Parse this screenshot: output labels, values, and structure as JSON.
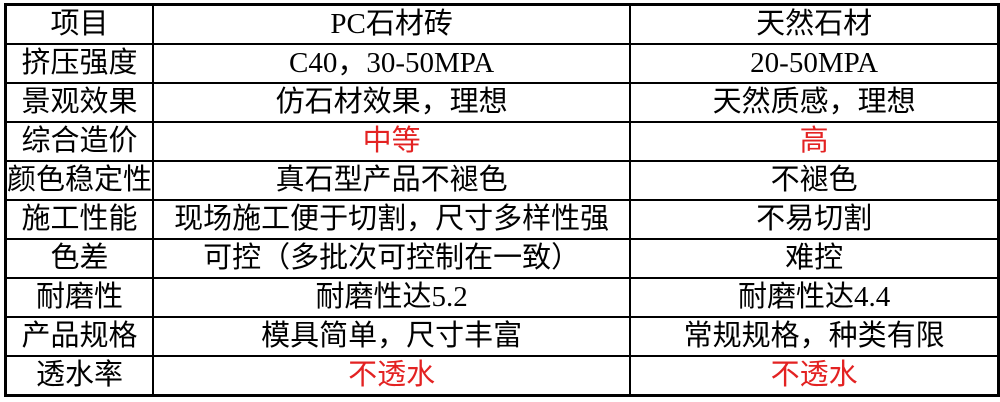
{
  "colors": {
    "background": "#ffffff",
    "border": "#000000",
    "text": "#000000",
    "highlight_red": "#e32222"
  },
  "table": {
    "title_semantic": "PC stone brick vs natural stone comparison",
    "rows": [
      {
        "label": "项目",
        "pc": "PC石材砖",
        "natural": "天然石材"
      },
      {
        "label": "挤压强度",
        "pc": "C40，30-50MPA",
        "natural": "20-50MPA"
      },
      {
        "label": "景观效果",
        "pc": "仿石材效果，理想",
        "natural": "天然质感，理想"
      },
      {
        "label": "综合造价",
        "pc": "中等",
        "natural": "高",
        "value_color": "#e32222"
      },
      {
        "label": "颜色稳定性",
        "pc": "真石型产品不褪色",
        "natural": "不褪色"
      },
      {
        "label": "施工性能",
        "pc": "现场施工便于切割，尺寸多样性强",
        "natural": "不易切割"
      },
      {
        "label": "色差",
        "pc": "可控（多批次可控制在一致）",
        "natural": "难控"
      },
      {
        "label": "耐磨性",
        "pc": "耐磨性达5.2",
        "natural": "耐磨性达4.4"
      },
      {
        "label": "产品规格",
        "pc": "模具简单，尺寸丰富",
        "natural": "常规规格，种类有限"
      },
      {
        "label": "透水率",
        "pc": "不透水",
        "natural": "不透水",
        "value_color": "#e32222"
      }
    ]
  }
}
